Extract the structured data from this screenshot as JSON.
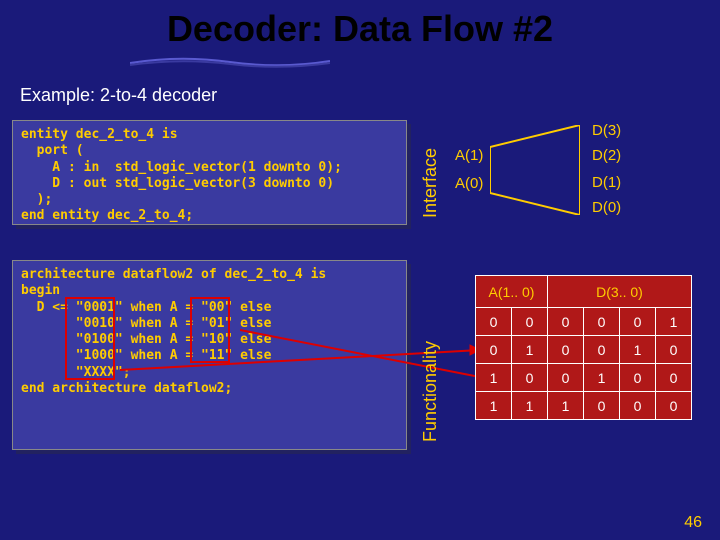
{
  "title": "Decoder: Data Flow #2",
  "subtitle": "Example: 2-to-4 decoder",
  "code_entity": "entity dec_2_to_4 is\n  port (\n    A : in  std_logic_vector(1 downto 0);\n    D : out std_logic_vector(3 downto 0)\n  );\nend entity dec_2_to_4;",
  "code_arch": "architecture dataflow2 of dec_2_to_4 is\nbegin\n  D <= \"0001\" when A = \"00\" else\n       \"0010\" when A = \"01\" else\n       \"0100\" when A = \"10\" else\n       \"1000\" when A = \"11\" else\n       \"XXXX\";\nend architecture dataflow2;",
  "label_interface": "Interface",
  "label_functionality": "Functionality",
  "trap": {
    "a1": "A(1)",
    "a0": "A(0)",
    "d3": "D(3)",
    "d2": "D(2)",
    "d1": "D(1)",
    "d0": "D(0)"
  },
  "truth": {
    "head_a": "A(1.. 0)",
    "head_d": "D(3.. 0)",
    "rows": [
      [
        "0",
        "0",
        "0",
        "0",
        "0",
        "1"
      ],
      [
        "0",
        "1",
        "0",
        "0",
        "1",
        "0"
      ],
      [
        "1",
        "0",
        "0",
        "1",
        "0",
        "0"
      ],
      [
        "1",
        "1",
        "1",
        "0",
        "0",
        "0"
      ]
    ]
  },
  "page": "46",
  "colors": {
    "bg": "#1a1a7a",
    "accent": "#ffcc00",
    "tablebg": "#b01818",
    "red": "#d00000"
  }
}
